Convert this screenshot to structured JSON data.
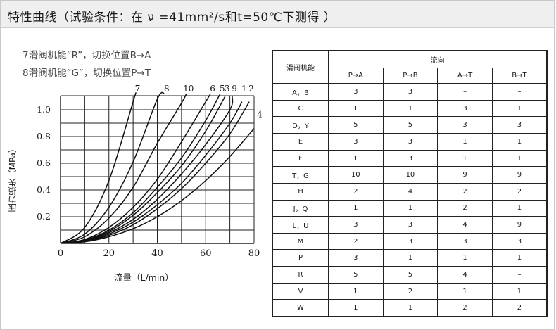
{
  "header": {
    "title": "特性曲线（试验条件：在 ν =41mm²/s和t=50℃下测得 ）"
  },
  "notes": [
    "7滑阀机能“R”，切换位置B→A",
    "8滑阀机能“G”，切换位置P→T"
  ],
  "chart_data": {
    "type": "line",
    "xlabel": "流量（L/min）",
    "ylabel": "压力损失（MPa）",
    "xlim": [
      0,
      80
    ],
    "ylim": [
      0,
      1.1
    ],
    "grid": true,
    "x_ticks": [
      0,
      20,
      40,
      60,
      80
    ],
    "y_ticks": [
      0.2,
      0.4,
      0.6,
      0.8,
      1.0
    ],
    "y_tick_labels": [
      "0.2",
      "0.4",
      "0.6",
      "0.8",
      "1.0"
    ],
    "x_tick_labels": [
      "0",
      "20",
      "40",
      "60",
      "80"
    ],
    "series": [
      {
        "name": "7",
        "x": [
          0,
          10,
          20,
          30,
          31
        ],
        "y": [
          0,
          0.12,
          0.47,
          1.06,
          1.12
        ]
      },
      {
        "name": "8",
        "x": [
          0,
          10,
          20,
          30,
          40,
          43
        ],
        "y": [
          0,
          0.07,
          0.27,
          0.61,
          1.08,
          1.12
        ]
      },
      {
        "name": "10",
        "x": [
          0,
          10,
          20,
          30,
          40,
          50,
          52
        ],
        "y": [
          0,
          0.05,
          0.19,
          0.42,
          0.75,
          1.05,
          1.12
        ]
      },
      {
        "name": "6",
        "x": [
          0,
          10,
          20,
          30,
          40,
          50,
          60,
          62
        ],
        "y": [
          0,
          0.03,
          0.12,
          0.27,
          0.48,
          0.76,
          1.06,
          1.12
        ]
      },
      {
        "name": "5",
        "x": [
          0,
          10,
          20,
          30,
          40,
          50,
          60,
          66
        ],
        "y": [
          0,
          0.025,
          0.1,
          0.23,
          0.42,
          0.64,
          0.92,
          1.12
        ]
      },
      {
        "name": "3",
        "x": [
          0,
          10,
          20,
          30,
          40,
          50,
          60,
          68
        ],
        "y": [
          0,
          0.022,
          0.09,
          0.21,
          0.38,
          0.58,
          0.84,
          1.1
        ]
      },
      {
        "name": "9",
        "x": [
          0,
          10,
          20,
          30,
          40,
          50,
          60,
          70,
          71
        ],
        "y": [
          0,
          0.02,
          0.08,
          0.18,
          0.33,
          0.52,
          0.74,
          1.0,
          1.1
        ]
      },
      {
        "name": "1",
        "x": [
          0,
          10,
          20,
          30,
          40,
          50,
          60,
          70,
          75
        ],
        "y": [
          0,
          0.018,
          0.07,
          0.16,
          0.29,
          0.45,
          0.66,
          0.9,
          1.06
        ]
      },
      {
        "name": "2",
        "x": [
          0,
          10,
          20,
          30,
          40,
          50,
          60,
          70,
          78
        ],
        "y": [
          0,
          0.016,
          0.06,
          0.14,
          0.26,
          0.41,
          0.6,
          0.82,
          1.06
        ]
      },
      {
        "name": "4",
        "x": [
          0,
          10,
          20,
          30,
          40,
          50,
          60,
          70,
          80
        ],
        "y": [
          0,
          0.012,
          0.05,
          0.11,
          0.2,
          0.32,
          0.47,
          0.65,
          0.86
        ]
      }
    ]
  },
  "table": {
    "row_header": "滑阀机能",
    "group_header": "流向",
    "columns": [
      "P→A",
      "P→B",
      "A→T",
      "B→T"
    ],
    "rows": [
      {
        "label": "A，B",
        "values": [
          "3",
          "3",
          "–",
          "–"
        ]
      },
      {
        "label": "C",
        "values": [
          "1",
          "1",
          "3",
          "1"
        ]
      },
      {
        "label": "D，Y",
        "values": [
          "5",
          "5",
          "3",
          "3"
        ]
      },
      {
        "label": "E",
        "values": [
          "3",
          "3",
          "1",
          "1"
        ]
      },
      {
        "label": "F",
        "values": [
          "1",
          "3",
          "1",
          "1"
        ]
      },
      {
        "label": "T，G",
        "values": [
          "10",
          "10",
          "9",
          "9"
        ]
      },
      {
        "label": "H",
        "values": [
          "2",
          "4",
          "2",
          "2"
        ]
      },
      {
        "label": "J，Q",
        "values": [
          "1",
          "1",
          "2",
          "1"
        ]
      },
      {
        "label": "L，U",
        "values": [
          "3",
          "3",
          "4",
          "9"
        ]
      },
      {
        "label": "M",
        "values": [
          "2",
          "3",
          "3",
          "3"
        ]
      },
      {
        "label": "P",
        "values": [
          "3",
          "1",
          "1",
          "1"
        ]
      },
      {
        "label": "R",
        "values": [
          "5",
          "5",
          "4",
          "–"
        ]
      },
      {
        "label": "V",
        "values": [
          "1",
          "2",
          "1",
          "1"
        ]
      },
      {
        "label": "W",
        "values": [
          "1",
          "1",
          "2",
          "2"
        ]
      }
    ]
  }
}
